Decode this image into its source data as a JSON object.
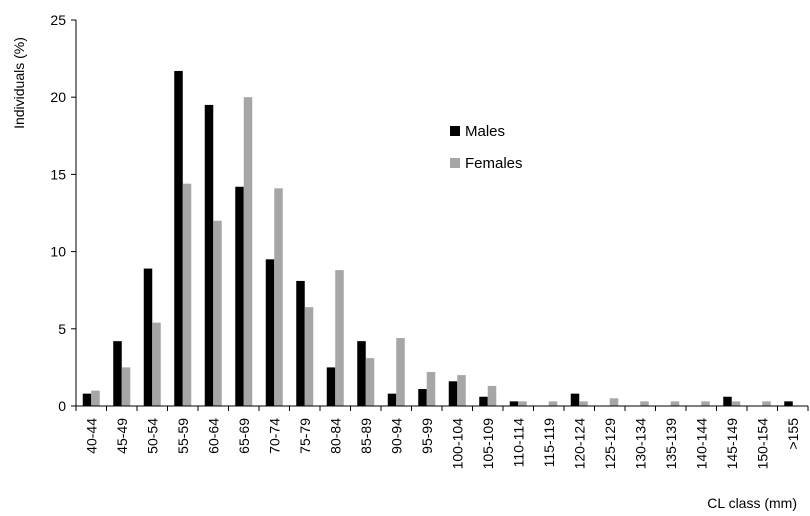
{
  "chart_data": {
    "type": "bar",
    "title": "",
    "xlabel": "CL class (mm)",
    "ylabel": "Individuals (%)",
    "ylim": [
      0,
      25
    ],
    "yticks": [
      0,
      5,
      10,
      15,
      20,
      25
    ],
    "grid": false,
    "legend_position": "upper-center",
    "categories": [
      "40-44",
      "45-49",
      "50-54",
      "55-59",
      "60-64",
      "65-69",
      "70-74",
      "75-79",
      "80-84",
      "85-89",
      "90-94",
      "95-99",
      "100-104",
      "105-109",
      "110-114",
      "115-119",
      "120-124",
      "125-129",
      "130-134",
      "135-139",
      "140-144",
      "145-149",
      "150-154",
      ">155"
    ],
    "series": [
      {
        "name": "Males",
        "color": "#000000",
        "values": [
          0.8,
          4.2,
          8.9,
          21.7,
          19.5,
          14.2,
          9.5,
          8.1,
          2.5,
          4.2,
          0.8,
          1.1,
          1.6,
          0.6,
          0.3,
          0,
          0.8,
          0,
          0,
          0,
          0,
          0.6,
          0,
          0.3
        ]
      },
      {
        "name": "Females",
        "color": "#a6a6a6",
        "values": [
          1.0,
          2.5,
          5.4,
          14.4,
          12.0,
          20.0,
          14.1,
          6.4,
          8.8,
          3.1,
          4.4,
          2.2,
          2.0,
          1.3,
          0.3,
          0.3,
          0.3,
          0.5,
          0.3,
          0.3,
          0.3,
          0.3,
          0.3,
          0
        ]
      }
    ]
  }
}
